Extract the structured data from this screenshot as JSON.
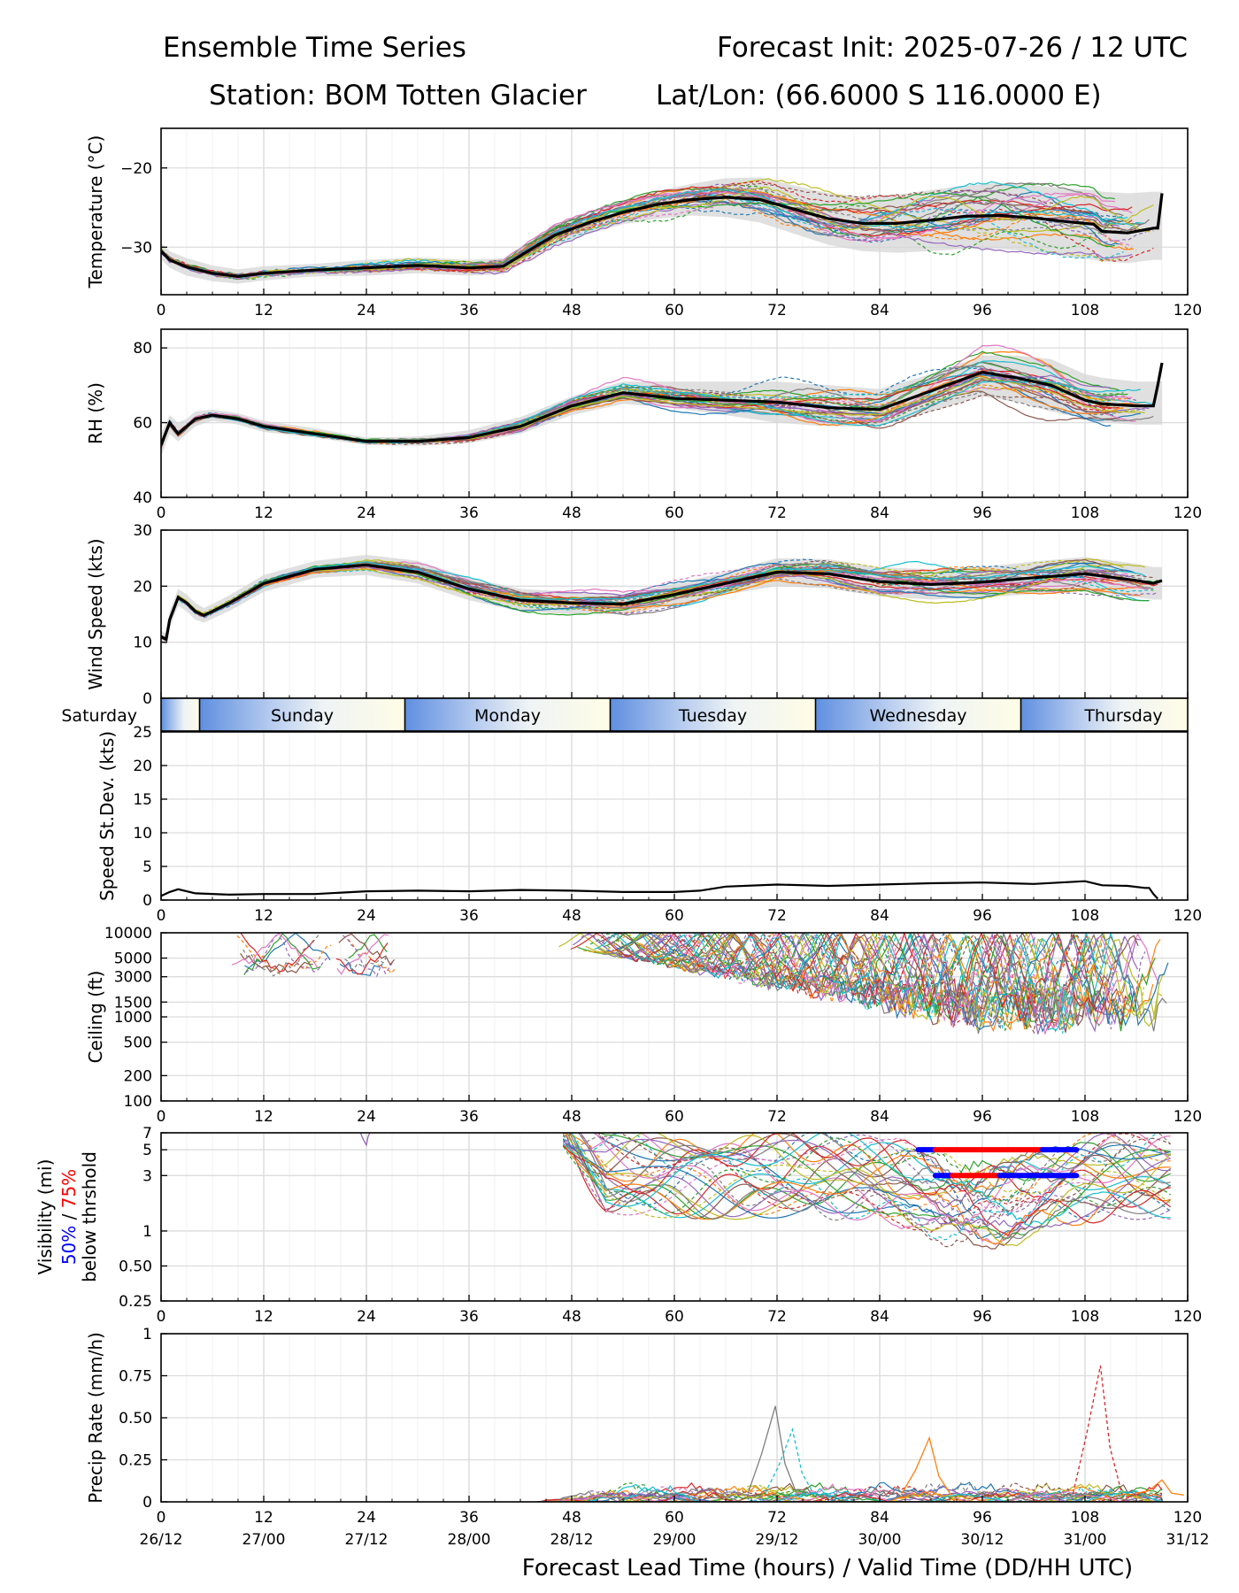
{
  "header": {
    "title_left": "Ensemble Time Series",
    "title_right": "Forecast Init: 2025-07-26 / 12 UTC",
    "station": "Station: BOM Totten Glacier",
    "latlon": "Lat/Lon: (66.6000 S 116.0000 E)"
  },
  "xaxis": {
    "label": "Forecast Lead Time (hours) / Valid Time (DD/HH UTC)",
    "ticks": [
      0,
      12,
      24,
      36,
      48,
      60,
      72,
      84,
      96,
      108,
      120
    ],
    "valid_time_labels": [
      "26/12",
      "27/00",
      "27/12",
      "28/00",
      "28/12",
      "29/00",
      "29/12",
      "30/00",
      "30/12",
      "31/00",
      "31/12"
    ]
  },
  "day_band": {
    "days": [
      "Saturday",
      "Sunday",
      "Monday",
      "Tuesday",
      "Wednesday",
      "Thursday"
    ],
    "boundaries_h": [
      4.5,
      28.5,
      52.5,
      76.5,
      100.5
    ]
  },
  "colors": {
    "members": [
      "#1f77b4",
      "#ff7f0e",
      "#2ca02c",
      "#d62728",
      "#9467bd",
      "#8c564b",
      "#e377c2",
      "#7f7f7f",
      "#bcbd22",
      "#17becf"
    ],
    "mean": "#000000",
    "spread": "#d6d6d6",
    "vis50": "#0000ff",
    "vis75": "#ff0000"
  },
  "chart_data": [
    {
      "type": "line",
      "ylabel": "Temperature (°C)",
      "ylim": [
        -36,
        -15
      ],
      "yticks": [
        -20,
        -30
      ],
      "mean": {
        "x": [
          0,
          1,
          3,
          6,
          9,
          12,
          18,
          24,
          30,
          36,
          40,
          43,
          46,
          50,
          54,
          58,
          62,
          66,
          70,
          74,
          78,
          82,
          86,
          90,
          94,
          98,
          102,
          106,
          109,
          110,
          113,
          116,
          116.5,
          117
        ],
        "y": [
          -30.5,
          -31.6,
          -32.5,
          -33.3,
          -33.7,
          -33.3,
          -32.9,
          -32.6,
          -32.3,
          -32.6,
          -32.4,
          -30.4,
          -28.5,
          -26.9,
          -25.6,
          -24.6,
          -24.0,
          -23.7,
          -24.0,
          -25.2,
          -26.4,
          -27.0,
          -27.0,
          -26.6,
          -26.1,
          -26.0,
          -26.3,
          -26.8,
          -27.1,
          -28.0,
          -28.2,
          -27.6,
          -27.6,
          -23.2
        ]
      },
      "spread_low": [
        -31.5,
        -32.6,
        -33.6,
        -34.3,
        -34.6,
        -34.2,
        -33.7,
        -33.6,
        -33.3,
        -33.6,
        -33.4,
        -31.6,
        -29.8,
        -28.3,
        -27.1,
        -26.4,
        -26.0,
        -26.2,
        -26.9,
        -28.3,
        -29.7,
        -30.5,
        -30.7,
        -30.5,
        -30.2,
        -30.2,
        -30.6,
        -31.2,
        -31.6,
        -31.8,
        -32.0,
        -31.6,
        -31.6,
        -31.6
      ],
      "spread_high": [
        -29.5,
        -30.5,
        -31.4,
        -32.3,
        -32.8,
        -32.4,
        -32.1,
        -31.6,
        -31.3,
        -31.6,
        -31.4,
        -29.2,
        -27.2,
        -25.5,
        -24.1,
        -22.9,
        -22.0,
        -21.3,
        -21.2,
        -22.2,
        -23.2,
        -23.6,
        -23.4,
        -22.8,
        -22.2,
        -21.9,
        -22.2,
        -22.6,
        -22.8,
        -23.0,
        -23.2,
        -23.0,
        -23.0,
        -23.0
      ],
      "member_spread": 3.2
    },
    {
      "type": "line",
      "ylabel": "RH (%)",
      "ylim": [
        40,
        85
      ],
      "yticks": [
        40,
        60,
        80
      ],
      "mean": {
        "x": [
          0,
          1,
          2,
          3,
          4,
          6,
          9,
          12,
          18,
          24,
          30,
          36,
          42,
          48,
          54,
          60,
          66,
          72,
          78,
          84,
          90,
          96,
          100,
          104,
          108,
          110,
          114,
          116,
          116.5,
          117
        ],
        "y": [
          54,
          60,
          57,
          59,
          61,
          62,
          61,
          59,
          57,
          55,
          55,
          56,
          59,
          64.5,
          68,
          66.5,
          66,
          65.5,
          64,
          63.5,
          68.5,
          73.5,
          72,
          70,
          66,
          65,
          64.5,
          64.5,
          70,
          76
        ]
      },
      "spread_low": [
        51,
        57,
        55,
        57,
        59,
        60.5,
        59.5,
        57.5,
        56,
        54,
        53.8,
        54.5,
        57,
        62,
        65,
        64,
        62,
        60,
        59,
        59,
        63,
        67,
        65.5,
        63,
        61,
        60,
        59.5,
        59.5,
        59.5,
        59.5
      ],
      "spread_high": [
        57,
        62,
        60,
        61,
        63,
        63.5,
        62.5,
        60.5,
        58.5,
        56,
        56.3,
        58,
        61.5,
        67,
        71,
        71,
        71,
        71,
        70,
        69,
        73,
        78,
        78,
        77,
        73,
        72,
        71,
        71,
        71,
        71
      ],
      "member_spread": 3.5
    },
    {
      "type": "line",
      "ylabel": "Wind Speed (kts)",
      "ylim": [
        0,
        30
      ],
      "yticks": [
        0,
        10,
        20,
        30
      ],
      "mean": {
        "x": [
          0,
          0.6,
          1,
          2,
          3,
          4,
          5,
          6,
          8,
          12,
          18,
          24,
          30,
          36,
          42,
          48,
          54,
          60,
          66,
          72,
          78,
          84,
          90,
          96,
          102,
          108,
          114,
          116,
          117
        ],
        "y": [
          11,
          10.5,
          14,
          18,
          17,
          15.5,
          14.8,
          15.5,
          17,
          20.5,
          23,
          23.8,
          22.5,
          19.5,
          17.5,
          17,
          16.8,
          18.5,
          20.5,
          22.5,
          22.2,
          20.8,
          20.3,
          20.7,
          21.5,
          22.2,
          21,
          20.5,
          21
        ]
      },
      "spread_low": [
        10,
        9.5,
        12.5,
        16.5,
        15.5,
        14,
        13.5,
        14.2,
        15.6,
        19,
        21.5,
        22,
        20.5,
        17.5,
        15.5,
        15,
        15,
        16.6,
        18.5,
        20,
        19.6,
        18.2,
        17.6,
        18,
        18.6,
        19.2,
        18,
        17.6,
        17.6
      ],
      "spread_high": [
        12,
        11.5,
        15.5,
        19.5,
        18.5,
        17,
        16.1,
        16.8,
        18.4,
        22,
        24.5,
        25.6,
        24.5,
        21.5,
        19.5,
        19,
        18.6,
        20.4,
        22.5,
        25,
        24.8,
        23.4,
        23,
        23.4,
        24.4,
        25.2,
        24,
        23.4,
        23.4
      ],
      "member_spread": 2.2
    },
    {
      "type": "line",
      "ylabel": "Speed St.Dev. (kts)",
      "ylim": [
        0,
        25
      ],
      "yticks": [
        0,
        5,
        10,
        15,
        20,
        25
      ],
      "x": [
        0,
        1,
        2,
        4,
        8,
        12,
        18,
        24,
        30,
        36,
        42,
        48,
        54,
        60,
        63,
        66,
        72,
        78,
        84,
        90,
        96,
        102,
        108,
        110,
        113,
        115,
        115.5,
        116,
        116.5
      ],
      "y": [
        0.6,
        1.2,
        1.6,
        1.0,
        0.8,
        0.9,
        0.9,
        1.3,
        1.4,
        1.3,
        1.5,
        1.4,
        1.2,
        1.2,
        1.4,
        2.0,
        2.3,
        2.1,
        2.3,
        2.5,
        2.6,
        2.4,
        2.8,
        2.2,
        2.1,
        1.8,
        1.8,
        0.9,
        0.2
      ]
    },
    {
      "type": "line",
      "ylabel": "Ceiling (ft)",
      "scale": "log",
      "ylim": [
        100,
        10000
      ],
      "yticks": [
        100,
        200,
        500,
        1000,
        1500,
        3000,
        5000,
        10000
      ],
      "member_regions_h": [
        [
          8,
          20
        ],
        [
          20,
          28
        ],
        [
          46,
          118
        ]
      ]
    },
    {
      "type": "line",
      "ylabel": "Visibility (mi)",
      "ylabel_parts": [
        "50%",
        " / ",
        "75%"
      ],
      "ylabel_sub": "below thrshold",
      "scale": "log",
      "ylim": [
        0.25,
        7
      ],
      "yticks": [
        0.25,
        0.5,
        1,
        3,
        5,
        7
      ],
      "threshold_bars": [
        {
          "level": 5,
          "x_range": [
            88.5,
            107
          ],
          "color_segments": [
            [
              "vis50",
              88.5,
              90.5
            ],
            [
              "vis75",
              90.5,
              103
            ],
            [
              "vis50",
              103,
              107
            ]
          ]
        },
        {
          "level": 3,
          "x_range": [
            90.5,
            107
          ],
          "color_segments": [
            [
              "vis50",
              90.5,
              92.5
            ],
            [
              "vis75",
              92.5,
              98
            ],
            [
              "vis50",
              98,
              107
            ]
          ]
        }
      ]
    },
    {
      "type": "line",
      "ylabel": "Precip Rate (mm/h)",
      "ylim": [
        0,
        1
      ],
      "yticks": [
        0.0,
        0.25,
        0.5,
        0.75,
        1.0
      ],
      "peaks": [
        {
          "x": 71.8,
          "y": 0.57,
          "member": 7
        },
        {
          "x": 73.8,
          "y": 0.43,
          "member": 9
        },
        {
          "x": 89.8,
          "y": 0.38,
          "member": 1
        },
        {
          "x": 109.8,
          "y": 0.81,
          "member": 3
        },
        {
          "x": 117,
          "y": 0.13,
          "member": 1
        }
      ]
    }
  ]
}
